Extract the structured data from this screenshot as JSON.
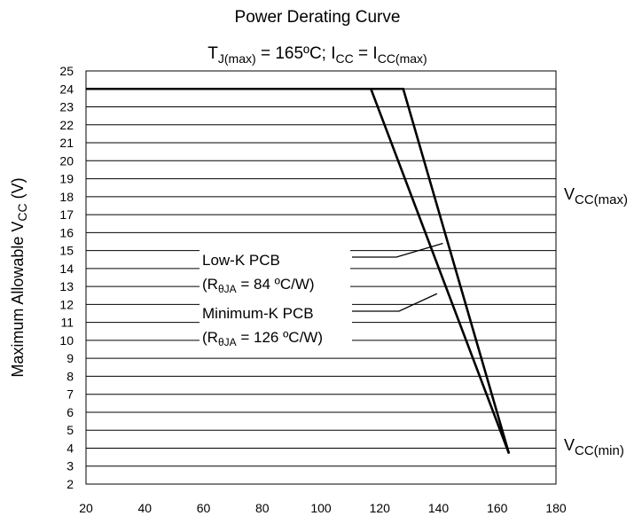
{
  "chart_data": {
    "type": "line",
    "title": "Power Derating Curve",
    "subtitle": {
      "tj_symbol": "T",
      "tj_sub": "J(max)",
      "tj_rest": " = 165ºC; I",
      "icc_sub": "CC",
      "icc_rest": " =  I",
      "iccmax_sub": "CC(max)"
    },
    "ylabel": {
      "main": "Maximum Allowable V",
      "sub": "CC",
      "unit": " (V)"
    },
    "xlabel": "",
    "xlim": [
      20,
      180
    ],
    "ylim": [
      2,
      25
    ],
    "x_ticks": [
      "20",
      "40",
      "60",
      "80",
      "100",
      "120",
      "140",
      "160",
      "180"
    ],
    "y_ticks": [
      "2",
      "3",
      "4",
      "5",
      "6",
      "7",
      "8",
      "9",
      "10",
      "11",
      "12",
      "13",
      "14",
      "15",
      "16",
      "17",
      "18",
      "19",
      "20",
      "21",
      "22",
      "23",
      "24",
      "25"
    ],
    "grid": "horizontal",
    "series": [
      {
        "points": [
          [
            20,
            24
          ],
          [
            128,
            24
          ],
          [
            164,
            3.7
          ]
        ]
      },
      {
        "points": [
          [
            20,
            24
          ],
          [
            117,
            24
          ],
          [
            164,
            3.7
          ]
        ]
      }
    ],
    "annotations": {
      "lowk": {
        "line1": "Low-K PCB",
        "pre": "(R",
        "sub": "θJA",
        "post": " = 84 ºC/W)",
        "pointer": [
          141.5,
          15.4
        ]
      },
      "mink": {
        "line1": "Minimum-K PCB",
        "pre": "(R",
        "sub": "θJA",
        "post": " = 126 ºC/W)",
        "pointer": [
          139.5,
          12.6
        ]
      },
      "vccmax": {
        "main": "V",
        "sub": "CC(max)"
      },
      "vccmin": {
        "main": "V",
        "sub": "CC(min)"
      }
    },
    "colors": {
      "line": "#000000",
      "background": "#ffffff"
    }
  }
}
